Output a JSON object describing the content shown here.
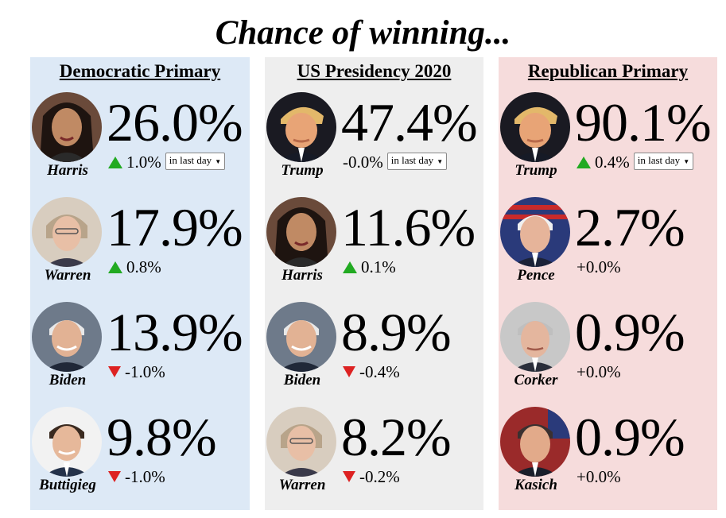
{
  "title": "Chance of winning...",
  "colors": {
    "dem_bg": "#dde9f6",
    "pres_bg": "#eeeeee",
    "rep_bg": "#f6dcdc",
    "up": "#22aa22",
    "down": "#dd2222"
  },
  "columns": [
    {
      "heading": "Democratic Primary",
      "period": "in last day",
      "candidates": [
        {
          "name": "Harris",
          "pct": "26.0%",
          "change": "1.0%",
          "dir": "up"
        },
        {
          "name": "Warren",
          "pct": "17.9%",
          "change": "0.8%",
          "dir": "up"
        },
        {
          "name": "Biden",
          "pct": "13.9%",
          "change": "-1.0%",
          "dir": "down"
        },
        {
          "name": "Buttigieg",
          "pct": "9.8%",
          "change": "-1.0%",
          "dir": "down"
        }
      ]
    },
    {
      "heading": "US Presidency 2020",
      "period": "in last day",
      "candidates": [
        {
          "name": "Trump",
          "pct": "47.4%",
          "change": "-0.0%",
          "dir": "none"
        },
        {
          "name": "Harris",
          "pct": "11.6%",
          "change": "0.1%",
          "dir": "up"
        },
        {
          "name": "Biden",
          "pct": "8.9%",
          "change": "-0.4%",
          "dir": "down"
        },
        {
          "name": "Warren",
          "pct": "8.2%",
          "change": "-0.2%",
          "dir": "down"
        }
      ]
    },
    {
      "heading": "Republican Primary",
      "period": "in last day",
      "candidates": [
        {
          "name": "Trump",
          "pct": "90.1%",
          "change": "0.4%",
          "dir": "up"
        },
        {
          "name": "Pence",
          "pct": "2.7%",
          "change": "+0.0%",
          "dir": "none"
        },
        {
          "name": "Corker",
          "pct": "0.9%",
          "change": "+0.0%",
          "dir": "none"
        },
        {
          "name": "Kasich",
          "pct": "0.9%",
          "change": "+0.0%",
          "dir": "none"
        }
      ]
    }
  ]
}
